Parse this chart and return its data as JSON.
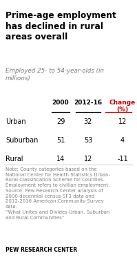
{
  "title": "Prime-age employment\nhas declined in rural\nareas overall",
  "subtitle": "Employed 25- to 54-year-olds (in\nmillions)",
  "col_headers": [
    "2000",
    "2012-16",
    "Change\n(%)"
  ],
  "rows": [
    {
      "label": "Urban",
      "v2000": "29",
      "v201216": "32",
      "change": "12"
    },
    {
      "label": "Suburban",
      "v2000": "51",
      "v201216": "53",
      "change": "4"
    },
    {
      "label": "Rural",
      "v2000": "14",
      "v201216": "12",
      "change": "-11"
    }
  ],
  "note_text": "Note: County categories based on the\nNational Center for Health Statistics Urban-\nRural Classification Scheme for Counties.\nEmployment refers to civilian employment.\nSource: Pew Research Center analysis of\n2000 decennial census SF3 data and\n2012-2016 American Community Survey\ndata.\n“What Unites and Divides Urban, Suburban\nand Rural Communities”",
  "footer": "PEW RESEARCH CENTER",
  "title_color": "#000000",
  "subtitle_color": "#808080",
  "header_color": "#000000",
  "note_color": "#808080",
  "footer_color": "#000000",
  "bg_color": "#ffffff",
  "change_col_color": "#cc0000",
  "row_label_color": "#000000",
  "underline_color": "#000000",
  "divider_color": "#cccccc"
}
